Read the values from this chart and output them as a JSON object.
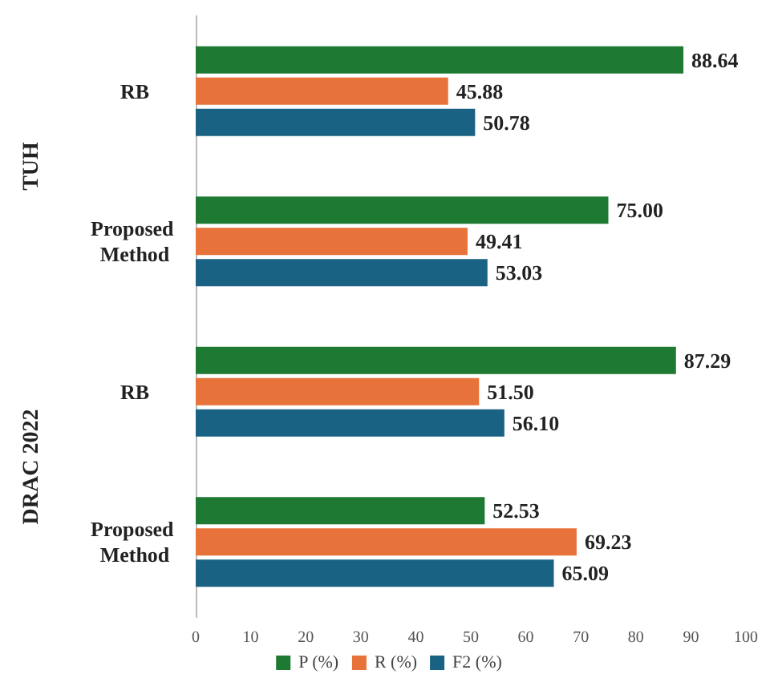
{
  "chart_data": {
    "type": "bar",
    "orientation": "horizontal",
    "categories": [
      "RB",
      "Proposed Method",
      "RB",
      "Proposed Method"
    ],
    "series": [
      {
        "name": "P (%)",
        "color": "#1e7a32",
        "values": [
          88.64,
          75.0,
          87.29,
          52.53
        ],
        "value_labels": [
          "88.64",
          "75.00",
          "87.29",
          "52.53"
        ]
      },
      {
        "name": "R (%)",
        "color": "#e8733a",
        "values": [
          45.88,
          49.41,
          51.5,
          69.23
        ],
        "value_labels": [
          "45.88",
          "49.41",
          "51.50",
          "69.23"
        ]
      },
      {
        "name": "F2 (%)",
        "color": "#1a6283",
        "values": [
          50.78,
          53.03,
          56.1,
          65.09
        ],
        "value_labels": [
          "50.78",
          "53.03",
          "56.10",
          "65.09"
        ]
      }
    ],
    "xlim": [
      0,
      100
    ],
    "xticks": [
      0,
      10,
      20,
      30,
      40,
      50,
      60,
      70,
      80,
      90,
      100
    ],
    "annotations": [
      "TUH",
      "DRAC 2022"
    ],
    "grid": false,
    "legend": "bottom"
  }
}
